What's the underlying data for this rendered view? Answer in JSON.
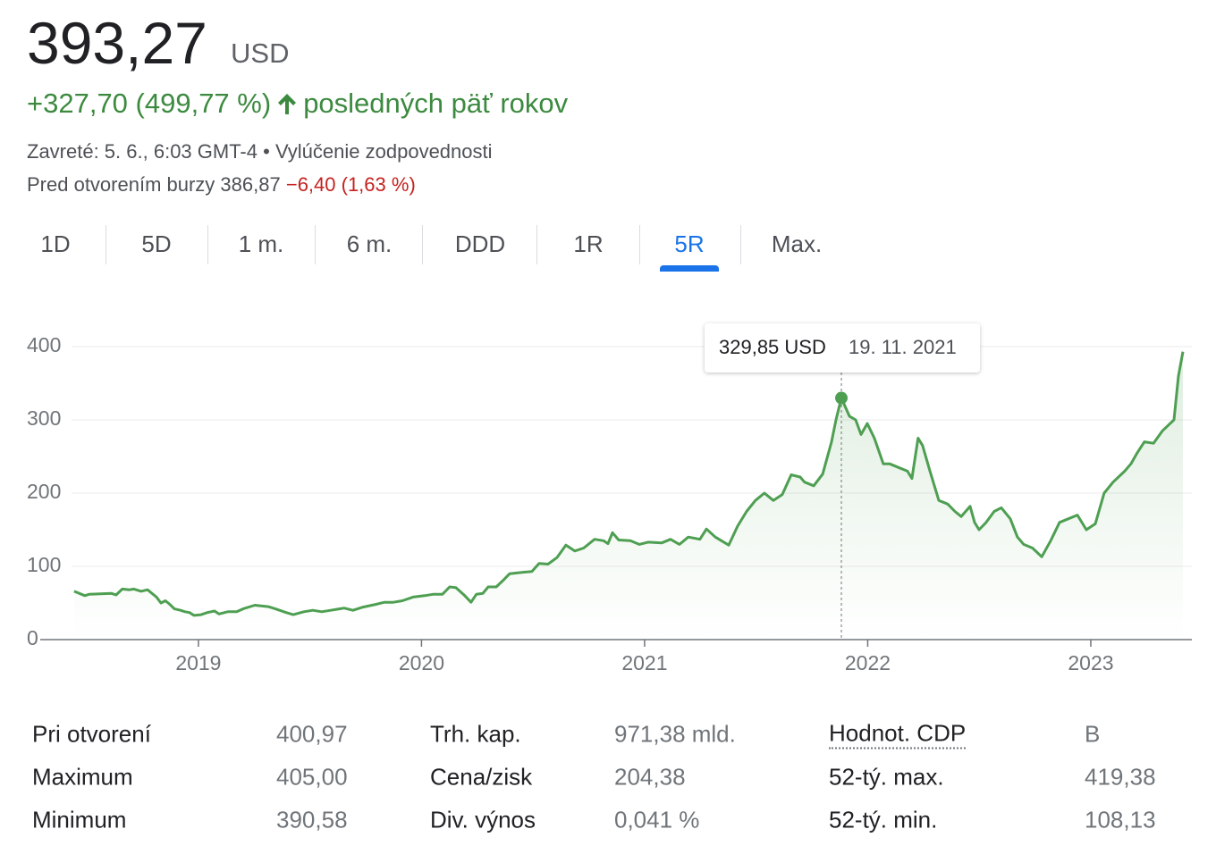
{
  "header": {
    "price": "393,27",
    "currency": "USD",
    "change": "+327,70 (499,77 %)",
    "period": "posledných päť rokov",
    "closed": "Zavreté: 5. 6., 6:03 GMT-4 •",
    "disclaimer": "Vylúčenie zodpovednosti",
    "premarket": "Pred otvorením burzy 386,87",
    "premarket_change": "−6,40 (1,63 %)"
  },
  "tabs": {
    "items": [
      "1D",
      "5D",
      "1 m.",
      "6 m.",
      "DDD",
      "1R",
      "5R",
      "Max."
    ],
    "active": "5R"
  },
  "chart_data": {
    "type": "line",
    "x": [
      2018.443,
      2018.491,
      2018.511,
      2018.611,
      2018.631,
      2018.659,
      2018.691,
      2018.711,
      2018.743,
      2018.772,
      2018.812,
      2018.832,
      2018.852,
      2018.872,
      2018.892,
      2018.92,
      2018.94,
      2018.96,
      2018.98,
      2019.012,
      2019.04,
      2019.072,
      2019.092,
      2019.132,
      2019.172,
      2019.2,
      2019.253,
      2019.313,
      2019.345,
      2019.393,
      2019.425,
      2019.473,
      2019.513,
      2019.553,
      2019.593,
      2019.653,
      2019.693,
      2019.733,
      2019.794,
      2019.834,
      2019.874,
      2019.914,
      2019.962,
      2020.014,
      2020.054,
      2020.094,
      2020.126,
      2020.154,
      2020.194,
      2020.222,
      2020.246,
      2020.275,
      2020.299,
      2020.335,
      2020.363,
      2020.395,
      2020.455,
      2020.495,
      2020.527,
      2020.567,
      2020.607,
      2020.647,
      2020.687,
      2020.727,
      2020.776,
      2020.816,
      2020.836,
      2020.856,
      2020.884,
      2020.936,
      2020.976,
      2021.016,
      2021.076,
      2021.116,
      2021.156,
      2021.196,
      2021.248,
      2021.277,
      2021.317,
      2021.377,
      2021.417,
      2021.457,
      2021.497,
      2021.537,
      2021.577,
      2021.617,
      2021.657,
      2021.697,
      2021.717,
      2021.758,
      2021.798,
      2021.838,
      2021.858,
      2021.882,
      2021.918,
      2021.946,
      2021.97,
      2021.998,
      2022.03,
      2022.07,
      2022.098,
      2022.138,
      2022.178,
      2022.198,
      2022.226,
      2022.246,
      2022.279,
      2022.319,
      2022.359,
      2022.391,
      2022.419,
      2022.459,
      2022.479,
      2022.499,
      2022.531,
      2022.567,
      2022.599,
      2022.639,
      2022.671,
      2022.699,
      2022.739,
      2022.78,
      2022.82,
      2022.86,
      2022.9,
      2022.94,
      2022.98,
      2023.02,
      2023.06,
      2023.1,
      2023.152,
      2023.18,
      2023.208,
      2023.24,
      2023.281,
      2023.321,
      2023.373,
      2023.393,
      2023.413
    ],
    "series": [
      {
        "color": "#4e9f52",
        "values": [
          66,
          60,
          62,
          63,
          61,
          69,
          68,
          69,
          66,
          68,
          58,
          50,
          53,
          48,
          42,
          40,
          38,
          37,
          33,
          34,
          37,
          39,
          35,
          38,
          38,
          42,
          47,
          45,
          42,
          37,
          34,
          38,
          40,
          38,
          40,
          43,
          40,
          44,
          48,
          51,
          51,
          53,
          58,
          60,
          62,
          62,
          72,
          71,
          60,
          51,
          62,
          63,
          72,
          72,
          80,
          90,
          92,
          93,
          104,
          103,
          112,
          129,
          121,
          125,
          137,
          135,
          131,
          146,
          136,
          135,
          130,
          133,
          132,
          137,
          130,
          140,
          137,
          151,
          140,
          129,
          155,
          175,
          190,
          200,
          190,
          198,
          225,
          222,
          215,
          210,
          226,
          270,
          300,
          329.85,
          305,
          300,
          280,
          295,
          275,
          240,
          240,
          235,
          230,
          220,
          275,
          265,
          230,
          190,
          185,
          175,
          168,
          182,
          160,
          150,
          160,
          175,
          180,
          165,
          140,
          130,
          125,
          113,
          135,
          160,
          165,
          170,
          150,
          158,
          200,
          215,
          230,
          240,
          255,
          270,
          268,
          285,
          300,
          360,
          393
        ]
      }
    ],
    "xlim": [
      2018.291,
      2023.453
    ],
    "xticks": [
      2019,
      2020,
      2021,
      2022,
      2023
    ],
    "ylim": [
      0,
      400
    ],
    "yticks": [
      0,
      100,
      200,
      300,
      400
    ],
    "grid": true,
    "tooltip": {
      "x": 2021.882,
      "y": 329.85,
      "value_label": "329,85 USD",
      "date_label": "19. 11. 2021"
    }
  },
  "stats": {
    "rows": [
      [
        "Pri otvorení",
        "400,97",
        "Trh. kap.",
        "971,38 mld.",
        "Hodnot. CDP",
        "B"
      ],
      [
        "Maximum",
        "405,00",
        "Cena/zisk",
        "204,38",
        "52-tý. max.",
        "419,38"
      ],
      [
        "Minimum",
        "390,58",
        "Div. výnos",
        "0,041 %",
        "52-tý. min.",
        "108,13"
      ]
    ]
  }
}
